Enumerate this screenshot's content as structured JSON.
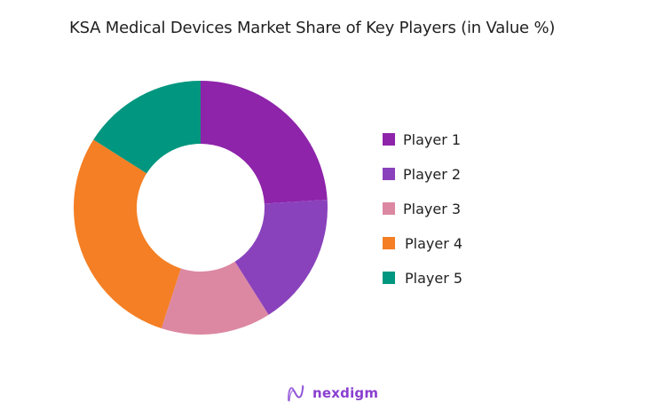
{
  "title": "KSA Medical Devices Market Share of Key Players (in Value %)",
  "footer": {
    "brand": "nexdigm",
    "logo_icon": "nexdigm-wave-icon"
  },
  "legend": {
    "items": [
      {
        "label": "Player 1",
        "color": "#8E24AA"
      },
      {
        "label": "Player 2",
        "color": "#8A42BC"
      },
      {
        "label": "Player 3",
        "color": "#DC88A2"
      },
      {
        "label": "Player 4",
        "color": "#F47F24"
      },
      {
        "label": "Player 5",
        "color": "#00967F"
      }
    ]
  },
  "chart_data": {
    "type": "pie",
    "subtype": "donut",
    "title": "KSA Medical Devices Market Share of Key Players (in Value %)",
    "categories": [
      "Player 1",
      "Player 2",
      "Player 3",
      "Player 4",
      "Player 5"
    ],
    "values": [
      24,
      17,
      14,
      29,
      16
    ],
    "unit": "%",
    "colors": [
      "#8E24AA",
      "#8A42BC",
      "#DC88A2",
      "#F47F24",
      "#00967F"
    ],
    "start_angle": "12 o'clock, clockwise",
    "legend_position": "right",
    "data_labels": false
  }
}
